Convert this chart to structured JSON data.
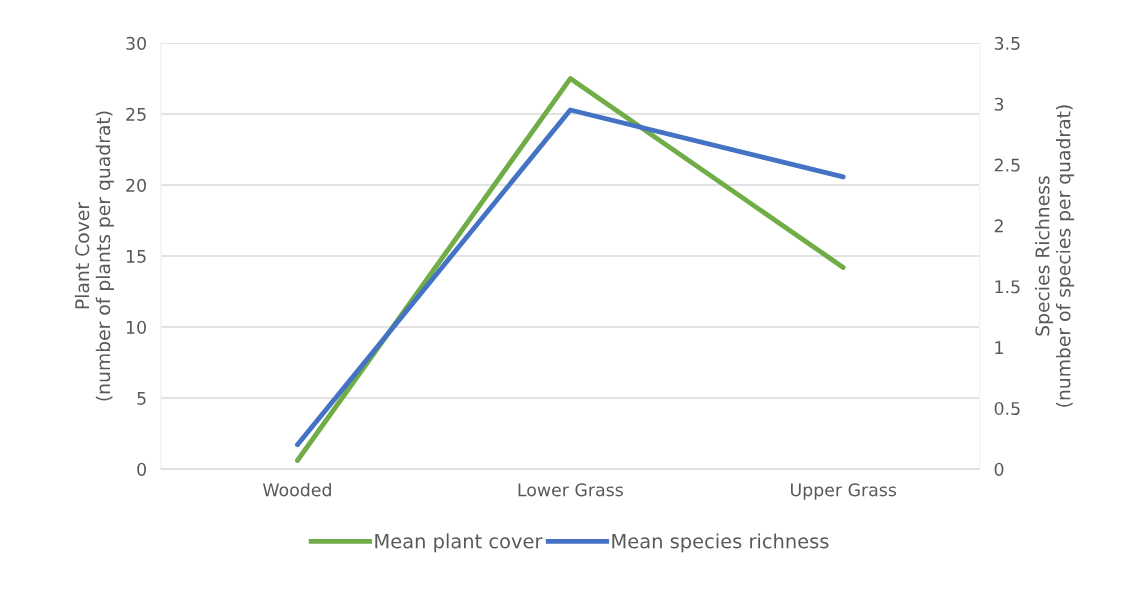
{
  "chart_data": {
    "type": "line",
    "categories": [
      "Wooded",
      "Lower Grass",
      "Upper Grass"
    ],
    "series": [
      {
        "name": "Mean plant cover",
        "color": "#70ad47",
        "values": [
          0.6,
          27.5,
          14.2
        ]
      },
      {
        "name": "Mean species richness",
        "color": "#4472c4",
        "values": [
          0.2,
          2.95,
          2.4
        ],
        "axis": "y2"
      }
    ],
    "ylabel": "Plant Cover\n(number of plants per quadrat)",
    "y2label": "Species Richness\n(number of species per quadrat)",
    "ylim": [
      0,
      30
    ],
    "yticks": [
      0,
      5,
      10,
      15,
      20,
      25,
      30
    ],
    "y2lim": [
      0,
      3.5
    ],
    "y2ticks": [
      0,
      0.5,
      1,
      1.5,
      2,
      2.5,
      3,
      3.5
    ],
    "grid": "y",
    "legend": "bottom",
    "marker": "none",
    "line_style": "solid"
  }
}
